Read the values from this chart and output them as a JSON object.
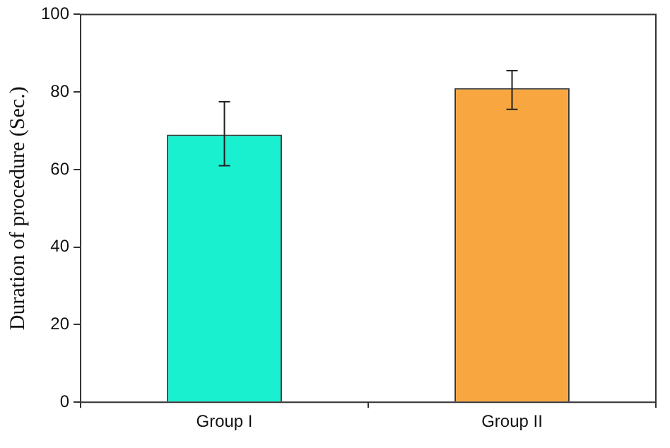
{
  "chart_data": {
    "type": "bar",
    "ylabel": "Duration of procedure (Sec.)",
    "categories": [
      "Group I",
      "Group II"
    ],
    "values": [
      69,
      81
    ],
    "colors": [
      "#19f0d0",
      "#f8a640"
    ],
    "errors": [
      [
        61,
        77.5
      ],
      [
        75.5,
        85.5
      ]
    ],
    "ylim": [
      0,
      100
    ],
    "yticks": [
      0,
      20,
      40,
      60,
      80,
      100
    ],
    "grid": false,
    "legend": false
  }
}
